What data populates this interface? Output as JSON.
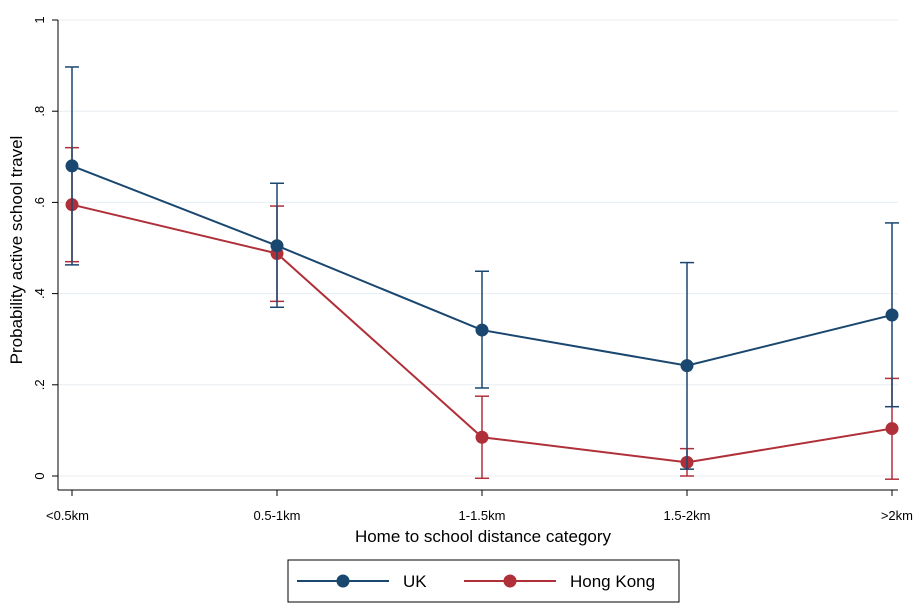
{
  "chart_data": {
    "type": "line",
    "title": "",
    "xlabel": "Home to school distance category",
    "ylabel": "Probability active school travel",
    "categories": [
      "<0.5km",
      "0.5-1km",
      "1-1.5km",
      "1.5-2km",
      ">2km"
    ],
    "ylim": [
      0,
      1
    ],
    "yticks": [
      0,
      0.2,
      0.4,
      0.6,
      0.8,
      1
    ],
    "ytick_labels": [
      "0",
      ".2",
      ".4",
      ".6",
      ".8",
      "1"
    ],
    "grid": true,
    "legend_position": "bottom",
    "series": [
      {
        "name": "UK",
        "color": "#1a476f",
        "values": [
          0.68,
          0.505,
          0.32,
          0.242,
          0.353
        ],
        "ci_low": [
          0.463,
          0.37,
          0.193,
          0.015,
          0.152
        ],
        "ci_high": [
          0.897,
          0.642,
          0.449,
          0.468,
          0.555
        ]
      },
      {
        "name": "Hong Kong",
        "color": "#b0303a",
        "values": [
          0.595,
          0.488,
          0.085,
          0.03,
          0.104
        ],
        "ci_low": [
          0.47,
          0.383,
          -0.005,
          0.0,
          -0.007
        ],
        "ci_high": [
          0.72,
          0.592,
          0.175,
          0.06,
          0.214
        ]
      }
    ]
  }
}
